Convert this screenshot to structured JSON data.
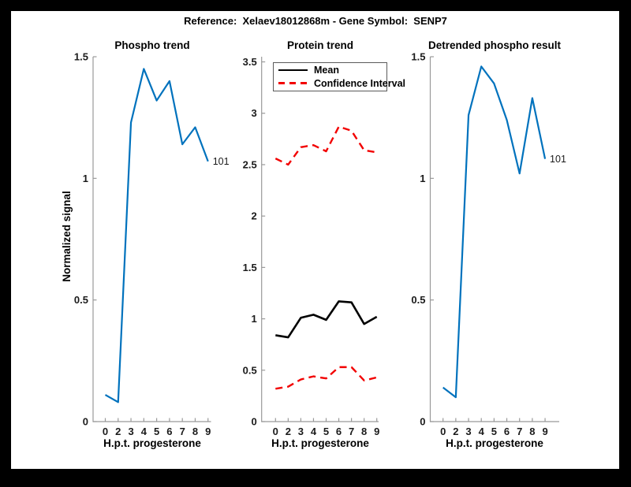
{
  "main_title": "Reference:  Xelaev18012868m - Gene Symbol:  SENP7",
  "colors": {
    "blue": "#0072BD",
    "red": "#F20000",
    "black": "#000000",
    "axis": "#999999",
    "tick_text": "#1a1a1a",
    "frame": "#000000",
    "background": "#FFFFFF"
  },
  "chart_data": [
    {
      "id": "phospho",
      "type": "line",
      "title": "Phospho trend",
      "xlabel": "H.p.t. progesterone",
      "ylabel": "Normalized signal",
      "x_tick_labels": [
        "0",
        "2",
        "3",
        "4",
        "5",
        "6",
        "7",
        "8",
        "9"
      ],
      "ylim": [
        0,
        1.5
      ],
      "yticks": [
        "0",
        "0.5",
        "1",
        "1.5"
      ],
      "grid": false,
      "end_label": "101",
      "series": [
        {
          "name": "Phospho signal",
          "color_key": "blue",
          "dash": "solid",
          "values": [
            0.11,
            0.08,
            1.23,
            1.45,
            1.32,
            1.4,
            1.14,
            1.21,
            1.07
          ]
        }
      ]
    },
    {
      "id": "protein",
      "type": "line",
      "title": "Protein trend",
      "xlabel": "H.p.t. progesterone",
      "x_tick_labels": [
        "0",
        "2",
        "3",
        "4",
        "5",
        "6",
        "7",
        "8",
        "9"
      ],
      "ylim": [
        0,
        3.55
      ],
      "yticks": [
        "0",
        "0.5",
        "1",
        "1.5",
        "2",
        "2.5",
        "3",
        "3.5"
      ],
      "grid": false,
      "legend": {
        "position": "top-left",
        "entries": [
          {
            "label": "Mean",
            "color_key": "black",
            "dash": "solid"
          },
          {
            "label": "Confidence Interval",
            "color_key": "red",
            "dash": "dashed"
          }
        ]
      },
      "series": [
        {
          "name": "Mean",
          "color_key": "black",
          "dash": "solid",
          "values": [
            0.84,
            0.82,
            1.01,
            1.04,
            0.99,
            1.17,
            1.16,
            0.95,
            1.02
          ]
        },
        {
          "name": "CI upper",
          "color_key": "red",
          "dash": "dashed",
          "values": [
            2.56,
            2.5,
            2.67,
            2.69,
            2.63,
            2.87,
            2.83,
            2.64,
            2.62
          ]
        },
        {
          "name": "CI lower",
          "color_key": "red",
          "dash": "dashed",
          "values": [
            0.32,
            0.34,
            0.41,
            0.44,
            0.42,
            0.53,
            0.53,
            0.4,
            0.43
          ]
        }
      ]
    },
    {
      "id": "detrended",
      "type": "line",
      "title": "Detrended phospho result",
      "xlabel": "H.p.t. progesterone",
      "x_tick_labels": [
        "0",
        "2",
        "3",
        "4",
        "5",
        "6",
        "7",
        "8",
        "9"
      ],
      "ylim": [
        0,
        1.5
      ],
      "yticks": [
        "0",
        "0.5",
        "1",
        "1.5"
      ],
      "grid": false,
      "end_label": "101",
      "series": [
        {
          "name": "Detrended phospho",
          "color_key": "blue",
          "dash": "solid",
          "values": [
            0.14,
            0.1,
            1.26,
            1.46,
            1.39,
            1.24,
            1.02,
            1.33,
            1.08
          ]
        }
      ]
    }
  ]
}
